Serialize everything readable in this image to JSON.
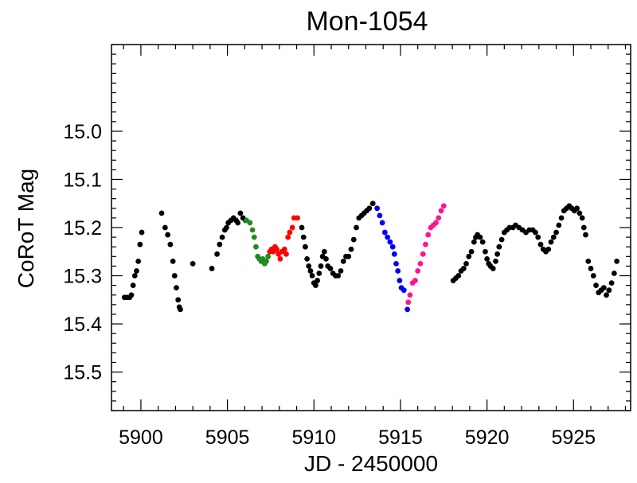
{
  "chart_data": {
    "type": "scatter",
    "title": "Mon-1054",
    "xlabel": "JD - 2450000",
    "ylabel": "CoRoT Mag",
    "xlim": [
      5898.3,
      5928.3
    ],
    "ylim": [
      15.58,
      14.82
    ],
    "x_ticks": [
      5900,
      5905,
      5910,
      5915,
      5920,
      5925
    ],
    "x_tick_labels": [
      "5900",
      "5905",
      "5910",
      "5915",
      "5920",
      "5925"
    ],
    "y_ticks": [
      15.0,
      15.1,
      15.2,
      15.3,
      15.4,
      15.5
    ],
    "y_tick_labels": [
      "15.0",
      "15.1",
      "15.2",
      "15.3",
      "15.4",
      "15.5"
    ],
    "series": [
      {
        "name": "black",
        "color": "#000000",
        "points": [
          [
            5899.05,
            15.345
          ],
          [
            5899.2,
            15.345
          ],
          [
            5899.35,
            15.345
          ],
          [
            5899.45,
            15.34
          ],
          [
            5899.55,
            15.32
          ],
          [
            5899.65,
            15.3
          ],
          [
            5899.75,
            15.29
          ],
          [
            5899.85,
            15.27
          ],
          [
            5899.95,
            15.235
          ],
          [
            5900.05,
            15.21
          ],
          [
            5901.2,
            15.17
          ],
          [
            5901.4,
            15.2
          ],
          [
            5901.55,
            15.215
          ],
          [
            5901.7,
            15.235
          ],
          [
            5901.85,
            15.27
          ],
          [
            5901.95,
            15.3
          ],
          [
            5902.05,
            15.325
          ],
          [
            5902.15,
            15.35
          ],
          [
            5902.22,
            15.365
          ],
          [
            5902.28,
            15.37
          ],
          [
            5903.0,
            15.275
          ],
          [
            5904.1,
            15.285
          ],
          [
            5904.4,
            15.255
          ],
          [
            5904.55,
            15.235
          ],
          [
            5904.7,
            15.22
          ],
          [
            5904.85,
            15.205
          ],
          [
            5904.95,
            15.2
          ],
          [
            5905.05,
            15.19
          ],
          [
            5905.2,
            15.185
          ],
          [
            5905.35,
            15.18
          ],
          [
            5905.5,
            15.185
          ],
          [
            5905.6,
            15.19
          ],
          [
            5905.75,
            15.17
          ],
          [
            5905.9,
            15.18
          ],
          [
            5906.05,
            15.185
          ],
          [
            5909.3,
            15.2
          ],
          [
            5909.4,
            15.22
          ],
          [
            5909.5,
            15.24
          ],
          [
            5909.6,
            15.265
          ],
          [
            5909.7,
            15.28
          ],
          [
            5909.8,
            15.29
          ],
          [
            5909.9,
            15.3
          ],
          [
            5910.0,
            15.315
          ],
          [
            5910.1,
            15.32
          ],
          [
            5910.2,
            15.31
          ],
          [
            5910.3,
            15.295
          ],
          [
            5910.4,
            15.28
          ],
          [
            5910.5,
            15.26
          ],
          [
            5910.6,
            15.25
          ],
          [
            5910.7,
            15.265
          ],
          [
            5910.8,
            15.28
          ],
          [
            5910.95,
            15.285
          ],
          [
            5911.1,
            15.295
          ],
          [
            5911.25,
            15.3
          ],
          [
            5911.4,
            15.3
          ],
          [
            5911.55,
            15.29
          ],
          [
            5911.7,
            15.27
          ],
          [
            5911.85,
            15.26
          ],
          [
            5912.0,
            15.26
          ],
          [
            5912.15,
            15.245
          ],
          [
            5912.3,
            15.225
          ],
          [
            5912.45,
            15.2
          ],
          [
            5912.6,
            15.18
          ],
          [
            5912.75,
            15.175
          ],
          [
            5912.9,
            15.17
          ],
          [
            5913.05,
            15.165
          ],
          [
            5913.2,
            15.16
          ],
          [
            5913.4,
            15.15
          ],
          [
            5918.05,
            15.31
          ],
          [
            5918.2,
            15.305
          ],
          [
            5918.35,
            15.3
          ],
          [
            5918.5,
            15.29
          ],
          [
            5918.65,
            15.285
          ],
          [
            5918.8,
            15.275
          ],
          [
            5918.95,
            15.26
          ],
          [
            5919.1,
            15.25
          ],
          [
            5919.25,
            15.23
          ],
          [
            5919.35,
            15.22
          ],
          [
            5919.45,
            15.215
          ],
          [
            5919.6,
            15.22
          ],
          [
            5919.75,
            15.23
          ],
          [
            5919.9,
            15.25
          ],
          [
            5920.0,
            15.265
          ],
          [
            5920.1,
            15.275
          ],
          [
            5920.2,
            15.28
          ],
          [
            5920.35,
            15.285
          ],
          [
            5920.5,
            15.27
          ],
          [
            5920.6,
            15.255
          ],
          [
            5920.7,
            15.24
          ],
          [
            5920.85,
            15.225
          ],
          [
            5921.0,
            15.21
          ],
          [
            5921.15,
            15.205
          ],
          [
            5921.3,
            15.2
          ],
          [
            5921.5,
            15.2
          ],
          [
            5921.65,
            15.195
          ],
          [
            5921.85,
            15.2
          ],
          [
            5922.05,
            15.205
          ],
          [
            5922.25,
            15.21
          ],
          [
            5922.45,
            15.205
          ],
          [
            5922.65,
            15.205
          ],
          [
            5922.8,
            15.21
          ],
          [
            5922.95,
            15.22
          ],
          [
            5923.1,
            15.235
          ],
          [
            5923.25,
            15.245
          ],
          [
            5923.4,
            15.25
          ],
          [
            5923.55,
            15.245
          ],
          [
            5923.7,
            15.23
          ],
          [
            5923.85,
            15.22
          ],
          [
            5924.0,
            15.21
          ],
          [
            5924.15,
            15.195
          ],
          [
            5924.3,
            15.18
          ],
          [
            5924.45,
            15.165
          ],
          [
            5924.6,
            15.16
          ],
          [
            5924.75,
            15.155
          ],
          [
            5924.9,
            15.16
          ],
          [
            5925.05,
            15.165
          ],
          [
            5925.2,
            15.16
          ],
          [
            5925.35,
            15.17
          ],
          [
            5925.5,
            15.18
          ],
          [
            5925.6,
            15.2
          ],
          [
            5925.7,
            15.215
          ],
          [
            5925.85,
            15.27
          ],
          [
            5926.0,
            15.285
          ],
          [
            5926.15,
            15.3
          ],
          [
            5926.3,
            15.32
          ],
          [
            5926.45,
            15.335
          ],
          [
            5926.6,
            15.33
          ],
          [
            5926.75,
            15.325
          ],
          [
            5926.9,
            15.34
          ],
          [
            5927.05,
            15.33
          ],
          [
            5927.2,
            15.315
          ],
          [
            5927.35,
            15.295
          ],
          [
            5927.5,
            15.27
          ]
        ]
      },
      {
        "name": "green",
        "color": "#228b22",
        "points": [
          [
            5906.1,
            15.185
          ],
          [
            5906.3,
            15.19
          ],
          [
            5906.45,
            15.205
          ],
          [
            5906.55,
            15.22
          ],
          [
            5906.65,
            15.24
          ],
          [
            5906.75,
            15.26
          ],
          [
            5906.85,
            15.265
          ],
          [
            5906.95,
            15.27
          ],
          [
            5907.05,
            15.265
          ],
          [
            5907.15,
            15.275
          ],
          [
            5907.25,
            15.27
          ],
          [
            5907.35,
            15.26
          ]
        ]
      },
      {
        "name": "red",
        "color": "#ff0000",
        "points": [
          [
            5907.45,
            15.25
          ],
          [
            5907.55,
            15.245
          ],
          [
            5907.65,
            15.25
          ],
          [
            5907.75,
            15.24
          ],
          [
            5907.85,
            15.245
          ],
          [
            5907.95,
            15.255
          ],
          [
            5908.05,
            15.265
          ],
          [
            5908.15,
            15.25
          ],
          [
            5908.3,
            15.245
          ],
          [
            5908.4,
            15.255
          ],
          [
            5908.5,
            15.22
          ],
          [
            5908.6,
            15.21
          ],
          [
            5908.75,
            15.2
          ],
          [
            5908.85,
            15.18
          ],
          [
            5909.05,
            15.18
          ]
        ]
      },
      {
        "name": "blue",
        "color": "#0000ff",
        "points": [
          [
            5913.65,
            15.16
          ],
          [
            5913.8,
            15.175
          ],
          [
            5913.95,
            15.19
          ],
          [
            5914.1,
            15.21
          ],
          [
            5914.25,
            15.22
          ],
          [
            5914.4,
            15.23
          ],
          [
            5914.55,
            15.24
          ],
          [
            5914.65,
            15.255
          ],
          [
            5914.75,
            15.275
          ],
          [
            5914.85,
            15.29
          ],
          [
            5914.95,
            15.31
          ],
          [
            5915.05,
            15.325
          ],
          [
            5915.2,
            15.33
          ],
          [
            5915.4,
            15.37
          ]
        ]
      },
      {
        "name": "pink",
        "color": "#ff1493",
        "points": [
          [
            5915.45,
            15.355
          ],
          [
            5915.55,
            15.34
          ],
          [
            5915.7,
            15.315
          ],
          [
            5915.85,
            15.31
          ],
          [
            5916.0,
            15.29
          ],
          [
            5916.15,
            15.275
          ],
          [
            5916.3,
            15.255
          ],
          [
            5916.45,
            15.235
          ],
          [
            5916.6,
            15.215
          ],
          [
            5916.75,
            15.2
          ],
          [
            5916.9,
            15.195
          ],
          [
            5917.05,
            15.19
          ],
          [
            5917.2,
            15.18
          ],
          [
            5917.35,
            15.165
          ],
          [
            5917.5,
            15.155
          ]
        ]
      }
    ]
  }
}
